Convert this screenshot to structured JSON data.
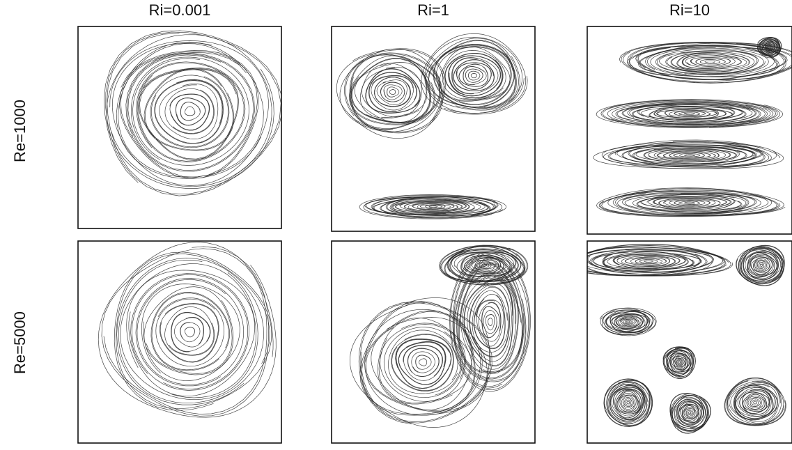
{
  "column_headers": [
    "Ri=0.001",
    "Ri=1",
    "Ri=10"
  ],
  "row_headers": [
    "Re=1000",
    "Re=5000"
  ]
}
